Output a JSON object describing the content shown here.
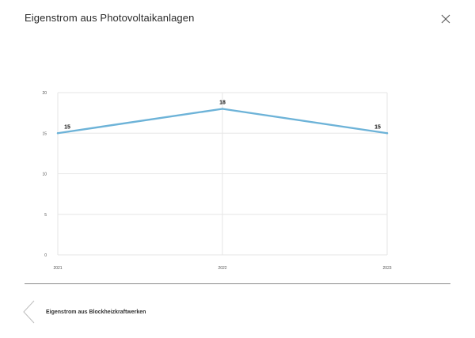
{
  "header": {
    "title": "Eigenstrom aus Photovoltaikanlagen",
    "close_icon": "close-icon"
  },
  "chart_data": {
    "type": "line",
    "categories": [
      "2021",
      "2022",
      "2023"
    ],
    "series": [
      {
        "values": [
          15,
          18,
          15
        ],
        "color": "#6db3d8"
      }
    ],
    "data_labels": [
      "15",
      "18",
      "15"
    ],
    "title": "",
    "xlabel": "",
    "ylabel": "",
    "ylim": [
      0,
      20
    ],
    "yticks": [
      0,
      5,
      10,
      15,
      20
    ],
    "ytick_labels": [
      "0",
      "5",
      "10",
      "15",
      "20"
    ],
    "grid": true,
    "legend": "none"
  },
  "footer": {
    "prev_link_label": "Eigenstrom aus Blockheizkraftwerken",
    "prev_icon": "chevron-left-icon"
  },
  "colors": {
    "line": "#6db3d8",
    "grid": "#e6e6e6",
    "divider": "#8a8a8a"
  }
}
